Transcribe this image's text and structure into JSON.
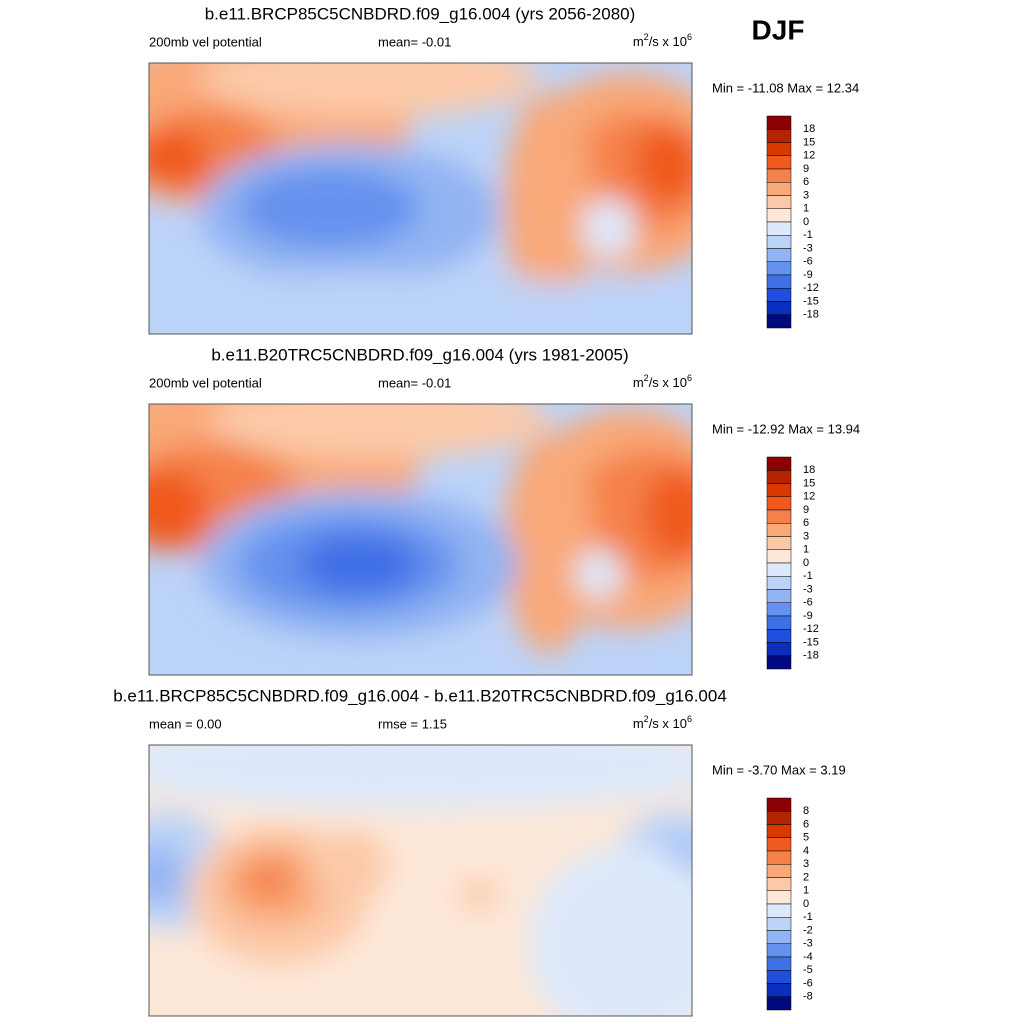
{
  "figure_label": "DJF",
  "colors": [
    "#8b0000",
    "#b52400",
    "#d93800",
    "#f05a1e",
    "#f5814a",
    "#f9a878",
    "#fcc9a8",
    "#fde8d8",
    "#dde9fb",
    "#bcd3f8",
    "#92b4f3",
    "#6592ee",
    "#3f70e6",
    "#1f4fdc",
    "#0a2fbf",
    "#00097e"
  ],
  "panels": [
    {
      "title": "b.e11.BRCP85C5CNBDRD.f09_g16.004 (yrs 2056-2080)",
      "left": "200mb vel potential",
      "center": "mean=  -0.01",
      "units": [
        "m",
        "2",
        "/s x 10",
        "6"
      ],
      "minmax": "Min = -11.08 Max =  12.34",
      "levels": [
        18,
        15,
        12,
        9,
        6,
        3,
        1,
        0,
        -1,
        -3,
        -6,
        -9,
        -12,
        -15,
        -18
      ]
    },
    {
      "title": "b.e11.B20TRC5CNBDRD.f09_g16.004 (yrs 1981-2005)",
      "left": "200mb vel potential",
      "center": "mean=  -0.01",
      "units": [
        "m",
        "2",
        "/s x 10",
        "6"
      ],
      "minmax": "Min = -12.92 Max =  13.94",
      "levels": [
        18,
        15,
        12,
        9,
        6,
        3,
        1,
        0,
        -1,
        -3,
        -6,
        -9,
        -12,
        -15,
        -18
      ]
    },
    {
      "title": "b.e11.BRCP85C5CNBDRD.f09_g16.004 - b.e11.B20TRC5CNBDRD.f09_g16.004",
      "left": "mean =   0.00",
      "center": "rmse =   1.15",
      "units": [
        "m",
        "2",
        "/s x 10",
        "6"
      ],
      "minmax": "Min =  -3.70 Max =   3.19",
      "levels": [
        8,
        6,
        5,
        4,
        3,
        2,
        1,
        0,
        -1,
        -2,
        -3,
        -4,
        -5,
        -6,
        -8
      ]
    }
  ]
}
